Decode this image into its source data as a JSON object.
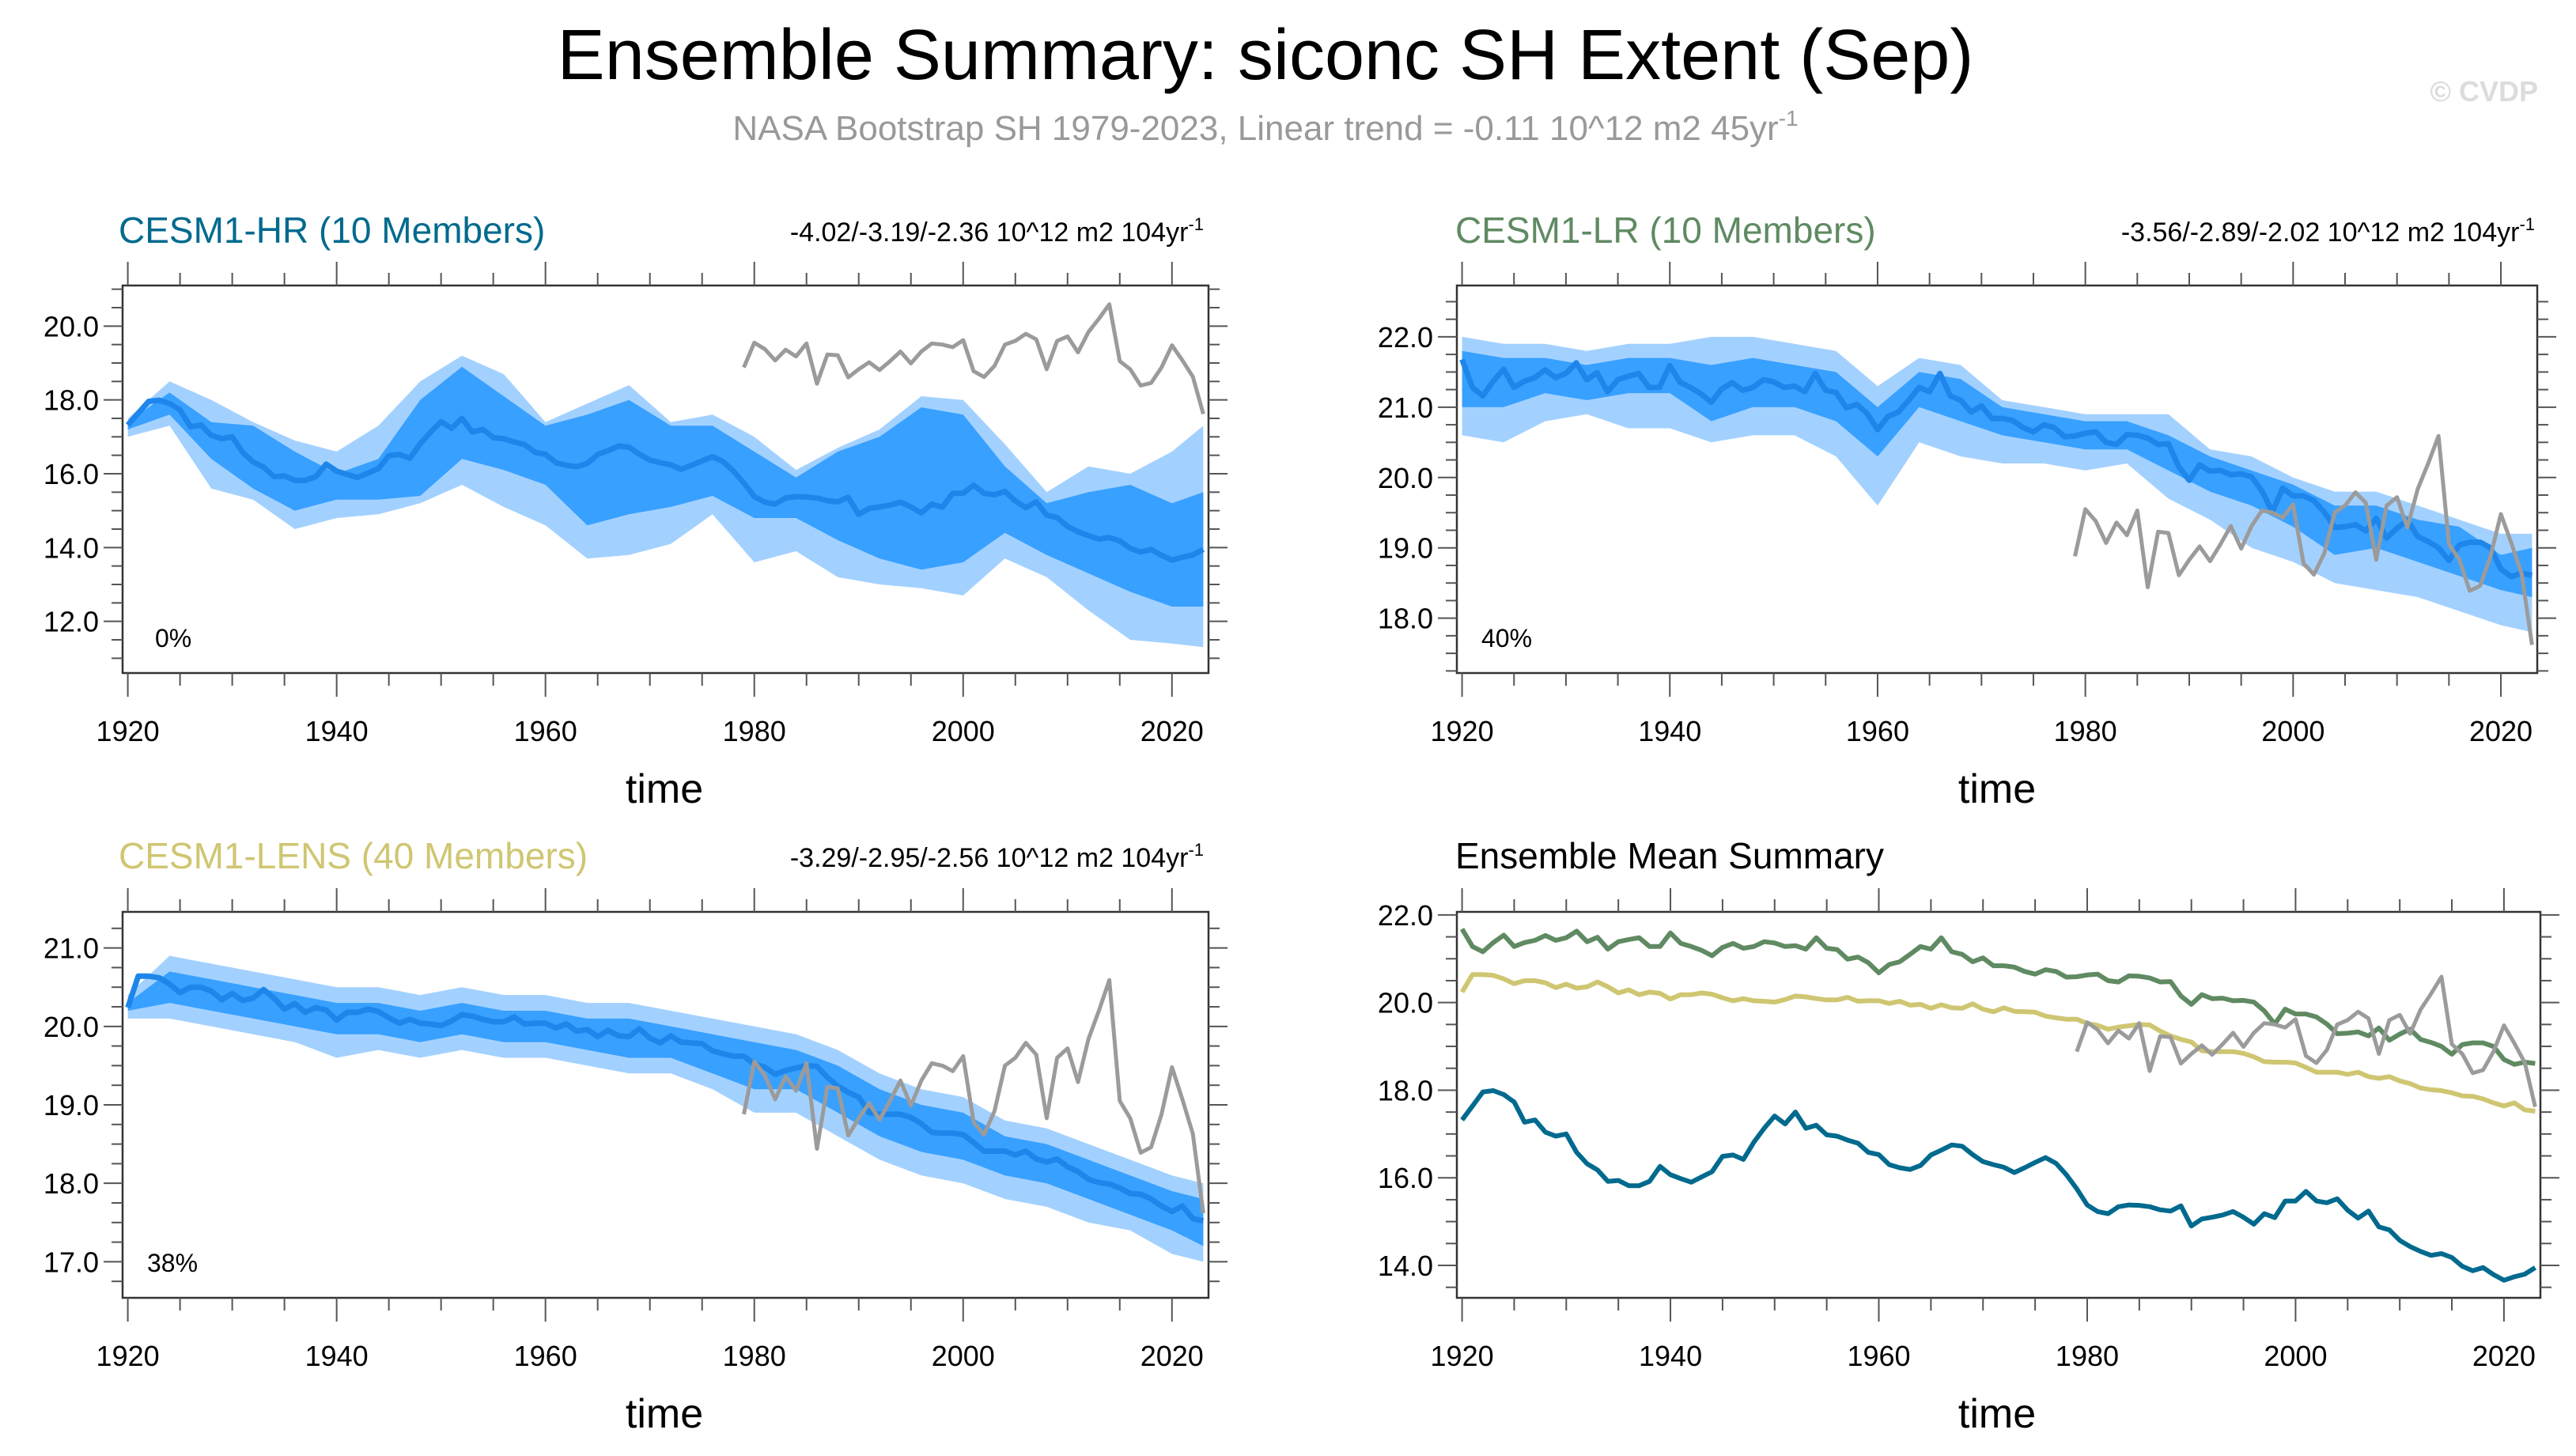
{
  "header": {
    "title": "Ensemble Summary: siconc SH Extent (Sep)",
    "subtitle": "NASA Bootstrap SH 1979-2023, Linear trend = -0.11 10^12 m2 45yr",
    "subtitle_sup": "-1",
    "watermark": "© CVDP"
  },
  "colors": {
    "hr": "#006a8e",
    "lr": "#5f8a62",
    "lens": "#cfc672",
    "obs": "#9b9b9b",
    "band_outer": "#a3d1ff",
    "band_inner": "#38a0ff",
    "mean": "#1e86ea"
  },
  "chart_data": [
    {
      "type": "area",
      "title": "CESM1-HR (10 Members)",
      "title_color": "#006a8e",
      "trend": "-4.02/-3.19/-2.36 10^12 m2 104yr",
      "trend_sup": "-1",
      "percent": "0%",
      "xlabel": "time",
      "xlim": [
        1919.5,
        2023.5
      ],
      "ylim": [
        10.6,
        21.1
      ],
      "yticks": [
        "12.0",
        "14.0",
        "16.0",
        "18.0",
        "20.0"
      ],
      "xticks": [
        "1920",
        "1940",
        "1960",
        "1980",
        "2000",
        "2020"
      ],
      "mean_start": 1920,
      "mean": [
        17.32,
        17.64,
        17.96,
        17.99,
        17.9,
        17.73,
        17.27,
        17.32,
        17.04,
        16.95,
        17.0,
        16.58,
        16.32,
        16.18,
        15.92,
        15.94,
        15.82,
        15.82,
        15.92,
        16.26,
        16.07,
        15.98,
        15.9,
        16.02,
        16.14,
        16.49,
        16.52,
        16.42,
        16.81,
        17.13,
        17.41,
        17.23,
        17.5,
        17.13,
        17.2,
        16.98,
        16.95,
        16.86,
        16.79,
        16.58,
        16.53,
        16.3,
        16.23,
        16.19,
        16.28,
        16.52,
        16.63,
        16.75,
        16.72,
        16.53,
        16.37,
        16.3,
        16.24,
        16.12,
        16.23,
        16.35,
        16.46,
        16.33,
        16.07,
        15.75,
        15.38,
        15.23,
        15.18,
        15.34,
        15.38,
        15.37,
        15.34,
        15.27,
        15.24,
        15.36,
        14.9,
        15.06,
        15.1,
        15.15,
        15.23,
        15.1,
        14.94,
        15.18,
        15.09,
        15.47,
        15.47,
        15.69,
        15.47,
        15.43,
        15.52,
        15.26,
        15.08,
        15.24,
        14.88,
        14.81,
        14.57,
        14.43,
        14.32,
        14.23,
        14.27,
        14.18,
        13.98,
        13.88,
        13.95,
        13.79,
        13.66,
        13.74,
        13.8,
        13.95
      ],
      "band_years": [
        1920,
        1924,
        1928,
        1932,
        1936,
        1940,
        1944,
        1948,
        1952,
        1956,
        1960,
        1964,
        1968,
        1972,
        1976,
        1980,
        1984,
        1988,
        1992,
        1996,
        2000,
        2004,
        2008,
        2012,
        2016,
        2020,
        2023
      ],
      "outer_upper": [
        17.5,
        18.5,
        18.0,
        17.4,
        16.9,
        16.6,
        17.3,
        18.5,
        19.2,
        18.7,
        17.4,
        17.9,
        18.4,
        17.4,
        17.6,
        17.0,
        16.1,
        16.7,
        17.2,
        18.1,
        18.0,
        16.8,
        15.5,
        16.2,
        16.0,
        16.6,
        17.3
      ],
      "inner_upper": [
        17.4,
        18.2,
        17.4,
        17.3,
        16.6,
        16.0,
        16.4,
        18.0,
        18.9,
        18.1,
        17.3,
        17.6,
        18.0,
        17.3,
        17.3,
        16.6,
        15.9,
        16.6,
        17.0,
        17.8,
        17.6,
        16.2,
        15.2,
        15.5,
        15.7,
        15.2,
        15.5
      ],
      "inner_lower": [
        17.2,
        17.6,
        16.4,
        15.6,
        15.0,
        15.3,
        15.3,
        15.4,
        16.4,
        16.1,
        15.7,
        14.6,
        14.9,
        15.1,
        15.4,
        14.8,
        14.8,
        14.2,
        13.7,
        13.4,
        13.6,
        14.4,
        13.8,
        13.3,
        12.8,
        12.4,
        12.4
      ],
      "outer_lower": [
        17.0,
        17.3,
        15.6,
        15.3,
        14.5,
        14.8,
        14.9,
        15.2,
        15.7,
        15.1,
        14.6,
        13.7,
        13.8,
        14.1,
        14.9,
        13.6,
        13.9,
        13.2,
        13.0,
        12.9,
        12.7,
        13.7,
        13.2,
        12.3,
        11.5,
        11.4,
        11.3
      ]
    },
    {
      "type": "area",
      "title": "CESM1-LR (10 Members)",
      "title_color": "#5f8a62",
      "trend": "-3.56/-2.89/-2.02 10^12 m2 104yr",
      "trend_sup": "-1",
      "percent": "40%",
      "xlabel": "time",
      "xlim": [
        1919.5,
        2023.5
      ],
      "ylim": [
        17.22,
        22.73
      ],
      "yticks": [
        "18.0",
        "19.0",
        "20.0",
        "21.0",
        "22.0"
      ],
      "xticks": [
        "1920",
        "1940",
        "1960",
        "1980",
        "2000",
        "2020"
      ],
      "mean_start": 1920,
      "mean": [
        21.68,
        21.28,
        21.16,
        21.37,
        21.54,
        21.28,
        21.37,
        21.42,
        21.53,
        21.42,
        21.48,
        21.63,
        21.39,
        21.49,
        21.22,
        21.39,
        21.44,
        21.48,
        21.28,
        21.28,
        21.59,
        21.35,
        21.28,
        21.19,
        21.07,
        21.26,
        21.35,
        21.24,
        21.28,
        21.39,
        21.36,
        21.28,
        21.3,
        21.22,
        21.48,
        21.24,
        21.21,
        20.99,
        21.04,
        20.91,
        20.68,
        20.87,
        20.93,
        21.1,
        21.28,
        21.22,
        21.48,
        21.16,
        21.1,
        20.93,
        21.02,
        20.84,
        20.84,
        20.81,
        20.71,
        20.65,
        20.75,
        20.71,
        20.58,
        20.59,
        20.63,
        20.65,
        20.5,
        20.47,
        20.61,
        20.6,
        20.56,
        20.47,
        20.48,
        20.15,
        19.96,
        20.18,
        20.09,
        20.1,
        20.04,
        20.05,
        20.01,
        19.81,
        19.51,
        19.85,
        19.74,
        19.74,
        19.67,
        19.51,
        19.29,
        19.3,
        19.33,
        19.24,
        19.42,
        19.14,
        19.28,
        19.39,
        19.16,
        19.09,
        19.0,
        18.82,
        19.04,
        19.08,
        19.08,
        19.0,
        18.7,
        18.59,
        18.64,
        18.61
      ],
      "band_years": [
        1920,
        1924,
        1928,
        1932,
        1936,
        1940,
        1944,
        1948,
        1952,
        1956,
        1960,
        1964,
        1968,
        1972,
        1976,
        1980,
        1984,
        1988,
        1992,
        1996,
        2000,
        2004,
        2008,
        2012,
        2016,
        2020,
        2023
      ],
      "outer_upper": [
        22.0,
        21.9,
        21.9,
        21.8,
        21.9,
        21.9,
        22.0,
        22.0,
        21.9,
        21.8,
        21.3,
        21.7,
        21.6,
        21.1,
        21.0,
        20.9,
        20.9,
        20.9,
        20.4,
        20.3,
        20.0,
        19.8,
        19.8,
        19.6,
        19.4,
        19.2,
        19.2
      ],
      "inner_upper": [
        21.8,
        21.7,
        21.7,
        21.6,
        21.7,
        21.7,
        21.6,
        21.7,
        21.6,
        21.5,
        21.0,
        21.5,
        21.4,
        21.0,
        20.9,
        20.8,
        20.8,
        20.6,
        20.3,
        20.1,
        19.9,
        19.6,
        19.6,
        19.4,
        19.3,
        18.9,
        19.0
      ],
      "inner_lower": [
        21.0,
        21.0,
        21.2,
        21.1,
        21.2,
        21.2,
        20.8,
        21.0,
        21.0,
        20.8,
        20.3,
        21.0,
        20.8,
        20.6,
        20.5,
        20.4,
        20.4,
        20.1,
        19.8,
        19.6,
        19.3,
        18.9,
        19.0,
        18.8,
        18.6,
        18.4,
        18.3
      ],
      "outer_lower": [
        20.6,
        20.5,
        20.8,
        20.9,
        20.7,
        20.7,
        20.5,
        20.6,
        20.6,
        20.3,
        19.6,
        20.5,
        20.3,
        20.2,
        20.2,
        20.1,
        20.2,
        19.7,
        19.4,
        19.0,
        18.8,
        18.5,
        18.4,
        18.3,
        18.1,
        17.9,
        17.8
      ]
    },
    {
      "type": "area",
      "title": "CESM1-LENS (40 Members)",
      "title_color": "#cfc672",
      "trend": "-3.29/-2.95/-2.56 10^12 m2 104yr",
      "trend_sup": "-1",
      "percent": "38%",
      "xlabel": "time",
      "xlim": [
        1919.5,
        2023.5
      ],
      "ylim": [
        16.54,
        21.46
      ],
      "yticks": [
        "17.0",
        "18.0",
        "19.0",
        "20.0",
        "21.0"
      ],
      "xticks": [
        "1920",
        "1940",
        "1960",
        "1980",
        "2000",
        "2020"
      ],
      "mean_start": 1920,
      "mean": [
        20.24,
        20.64,
        20.64,
        20.62,
        20.54,
        20.43,
        20.5,
        20.5,
        20.45,
        20.34,
        20.42,
        20.33,
        20.36,
        20.47,
        20.36,
        20.22,
        20.29,
        20.18,
        20.24,
        20.21,
        20.08,
        20.18,
        20.18,
        20.22,
        20.19,
        20.11,
        20.04,
        20.09,
        20.04,
        20.03,
        20.01,
        20.07,
        20.15,
        20.13,
        20.09,
        20.06,
        20.06,
        20.12,
        20.03,
        20.04,
        20.04,
        19.98,
        20.03,
        19.94,
        19.96,
        19.87,
        19.95,
        19.88,
        19.87,
        19.97,
        19.85,
        19.79,
        19.88,
        19.8,
        19.79,
        19.78,
        19.69,
        19.65,
        19.62,
        19.62,
        19.52,
        19.48,
        19.39,
        19.44,
        19.47,
        19.5,
        19.49,
        19.35,
        19.24,
        19.16,
        19.1,
        18.9,
        18.88,
        18.88,
        18.88,
        18.84,
        18.76,
        18.65,
        18.64,
        18.64,
        18.62,
        18.52,
        18.41,
        18.41,
        18.41,
        18.36,
        18.41,
        18.31,
        18.27,
        18.31,
        18.21,
        18.15,
        18.05,
        18.01,
        17.99,
        17.94,
        17.87,
        17.86,
        17.8,
        17.71,
        17.64,
        17.71,
        17.55,
        17.52
      ],
      "band_years": [
        1920,
        1924,
        1928,
        1932,
        1936,
        1940,
        1944,
        1948,
        1952,
        1956,
        1960,
        1964,
        1968,
        1972,
        1976,
        1980,
        1984,
        1988,
        1992,
        1996,
        2000,
        2004,
        2008,
        2012,
        2016,
        2020,
        2023
      ],
      "outer_upper": [
        20.4,
        20.9,
        20.8,
        20.7,
        20.6,
        20.5,
        20.5,
        20.4,
        20.5,
        20.4,
        20.4,
        20.3,
        20.3,
        20.2,
        20.1,
        20.0,
        19.9,
        19.7,
        19.4,
        19.2,
        19.1,
        18.8,
        18.7,
        18.5,
        18.3,
        18.1,
        18.0
      ],
      "inner_upper": [
        20.3,
        20.7,
        20.6,
        20.5,
        20.4,
        20.3,
        20.3,
        20.2,
        20.3,
        20.2,
        20.2,
        20.1,
        20.1,
        20.0,
        19.9,
        19.8,
        19.7,
        19.5,
        19.2,
        19.0,
        18.9,
        18.6,
        18.5,
        18.3,
        18.1,
        17.9,
        17.8
      ],
      "inner_lower": [
        20.2,
        20.3,
        20.2,
        20.1,
        20.0,
        19.9,
        19.9,
        19.8,
        19.9,
        19.8,
        19.8,
        19.7,
        19.6,
        19.6,
        19.4,
        19.2,
        19.2,
        18.9,
        18.6,
        18.4,
        18.3,
        18.1,
        18.0,
        17.8,
        17.6,
        17.4,
        17.2
      ],
      "outer_lower": [
        20.1,
        20.1,
        20.0,
        19.9,
        19.8,
        19.6,
        19.7,
        19.6,
        19.7,
        19.6,
        19.6,
        19.5,
        19.4,
        19.4,
        19.2,
        18.9,
        18.9,
        18.6,
        18.3,
        18.1,
        18.0,
        17.8,
        17.7,
        17.5,
        17.4,
        17.1,
        17.0
      ]
    },
    {
      "type": "line",
      "title": "Ensemble Mean Summary",
      "title_color": "#000000",
      "xlabel": "time",
      "xlim": [
        1919.5,
        2023.5
      ],
      "ylim": [
        13.26,
        22.07
      ],
      "yticks": [
        "14.0",
        "16.0",
        "18.0",
        "20.0",
        "22.0"
      ],
      "xticks": [
        "1920",
        "1940",
        "1960",
        "1980",
        "2000",
        "2020"
      ],
      "series": [
        {
          "name": "CESM1-LR",
          "source": 1,
          "color": "#5f8a62"
        },
        {
          "name": "CESM1-LENS",
          "source": 2,
          "color": "#cfc672"
        },
        {
          "name": "CESM1-HR",
          "source": 0,
          "color": "#006a8e"
        }
      ]
    }
  ],
  "observations": {
    "name": "NASA Bootstrap SH",
    "start": 1979,
    "values": [
      18.88,
      19.55,
      19.38,
      19.07,
      19.36,
      19.18,
      19.53,
      18.44,
      19.23,
      19.21,
      18.61,
      18.83,
      19.02,
      18.81,
      19.05,
      19.31,
      18.99,
      19.31,
      19.53,
      19.5,
      19.43,
      19.62,
      18.78,
      18.62,
      18.92,
      19.5,
      19.6,
      19.79,
      19.64,
      18.83,
      19.6,
      19.72,
      19.29,
      19.84,
      20.2,
      20.59,
      19.05,
      18.83,
      18.39,
      18.46,
      18.88,
      19.48,
      19.07,
      18.63,
      17.62
    ]
  }
}
